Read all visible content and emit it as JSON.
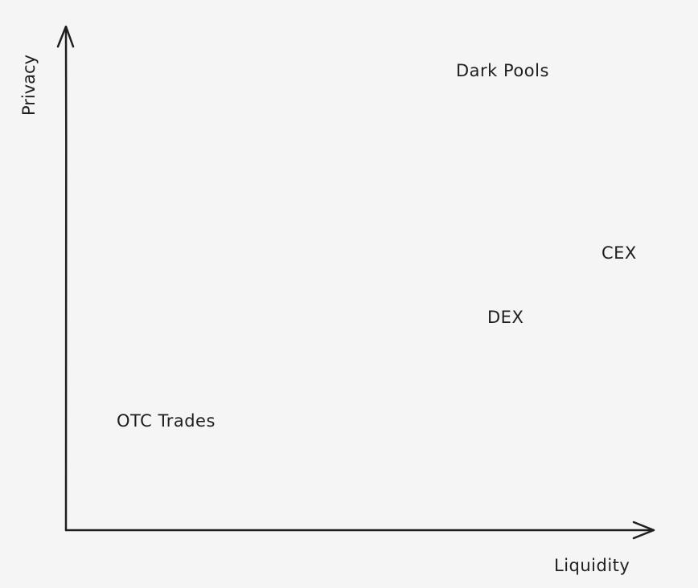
{
  "axes": {
    "y_label": "Privacy",
    "x_label": "Liquidity",
    "ink_color": "#1e1e1e",
    "background": "#f5f5f5"
  },
  "points": [
    {
      "label": "Dark Pools"
    },
    {
      "label": "CEX"
    },
    {
      "label": "DEX"
    },
    {
      "label": "OTC Trades"
    }
  ]
}
